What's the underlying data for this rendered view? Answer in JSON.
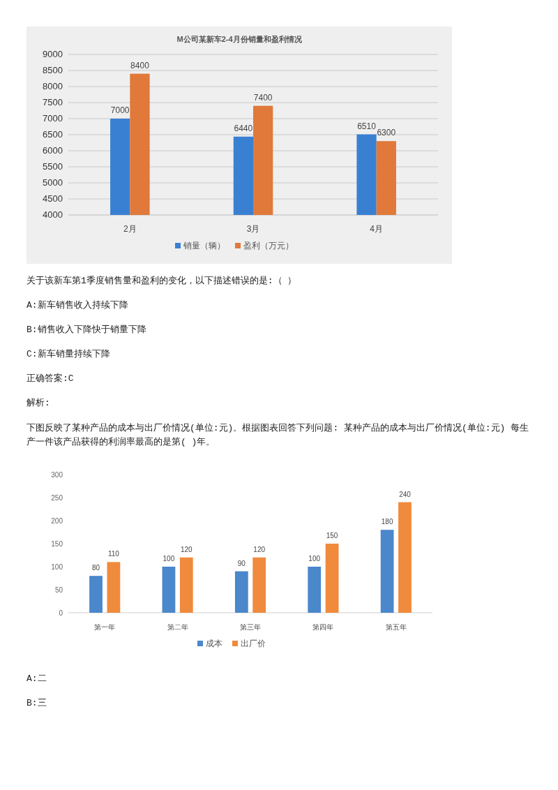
{
  "chart_data": [
    {
      "type": "bar",
      "title": "M公司某新车2-4月份销量和盈利情况",
      "categories": [
        "2月",
        "3月",
        "4月"
      ],
      "series": [
        {
          "name": "销量（辆）",
          "color": "#3a80d2",
          "values": [
            7000,
            6440,
            6510
          ]
        },
        {
          "name": "盈利（万元）",
          "color": "#e0793a",
          "values": [
            8400,
            7400,
            6300
          ]
        }
      ],
      "ylim": [
        4000,
        9000
      ],
      "yticks": [
        4000,
        4500,
        5000,
        5500,
        6000,
        6500,
        7000,
        7500,
        8000,
        8500,
        9000
      ],
      "grid": "y",
      "legend": "bottom",
      "data_labels": true,
      "annotations": [
        "关于该新车第1季度销售量和盈利的变化，以下描述错误的是:（ ）",
        "A:新车销售收入持续下降",
        "B:销售收入下降快于销量下降",
        "C:新车销量持续下降",
        "正确答案:C",
        "解析:"
      ]
    },
    {
      "type": "bar",
      "subtitle": "下图反映了某种产品的成本与出厂价情况(单位:元)。根据图表回答下列问题: 某种产品的成本与出厂价情况(单位:元) 每生产一件该产品获得的利润率最高的是第( )年。",
      "categories": [
        "第一年",
        "第二年",
        "第三年",
        "第四年",
        "第五年"
      ],
      "series": [
        {
          "name": "成本",
          "color": "#4a87cb",
          "values": [
            80,
            100,
            90,
            100,
            180
          ]
        },
        {
          "name": "出厂价",
          "color": "#f08a3c",
          "values": [
            110,
            120,
            120,
            150,
            240
          ]
        }
      ],
      "ylim": [
        0,
        300
      ],
      "yticks": [
        0,
        50,
        100,
        150,
        200,
        250,
        300
      ],
      "grid": false,
      "legend": "bottom",
      "data_labels": true,
      "annotations": [
        "A:二",
        "B:三"
      ]
    }
  ]
}
